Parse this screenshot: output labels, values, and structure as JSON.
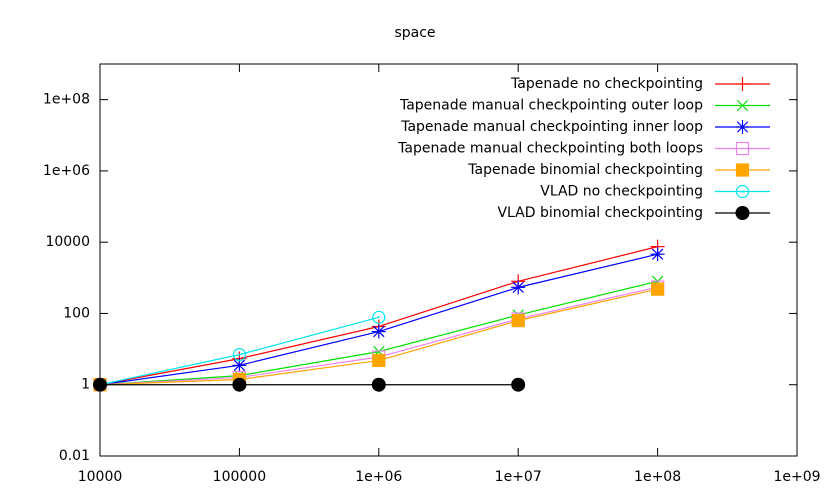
{
  "chart_data": {
    "type": "line",
    "title": "space",
    "x": [
      10000,
      100000,
      1000000,
      10000000,
      100000000
    ],
    "series": [
      {
        "name": "Tapenade no checkpointing",
        "color": "#ff0000",
        "marker": "plus",
        "values": [
          1,
          5.4,
          43,
          800,
          7500
        ]
      },
      {
        "name": "Tapenade manual checkpointing outer loop",
        "color": "#00e000",
        "marker": "cross",
        "values": [
          1,
          1.8,
          8.5,
          90,
          800
        ]
      },
      {
        "name": "Tapenade manual checkpointing inner loop",
        "color": "#0000ff",
        "marker": "star",
        "values": [
          1,
          3.5,
          31,
          540,
          4600
        ]
      },
      {
        "name": "Tapenade manual checkpointing both loops",
        "color": "#ee82ee",
        "marker": "square",
        "values": [
          1,
          1.6,
          6,
          70,
          550
        ]
      },
      {
        "name": "Tapenade binomial checkpointing",
        "color": "#ffa500",
        "marker": "filled-square",
        "values": [
          1,
          1.4,
          4.8,
          63,
          480
        ]
      },
      {
        "name": "VLAD no checkpointing",
        "color": "#00e5ee",
        "marker": "circle",
        "values": [
          1,
          7,
          78,
          null,
          null
        ]
      },
      {
        "name": "VLAD binomial checkpointing",
        "color": "#000000",
        "marker": "filled-circle",
        "values": [
          1,
          1,
          1,
          1,
          null
        ]
      }
    ],
    "xlim": [
      10000,
      1000000000
    ],
    "ylim": [
      0.01,
      1000000000
    ],
    "xticks": [
      10000,
      100000,
      {
        "value": 1000000,
        "label": "1e+06"
      },
      {
        "value": 10000000,
        "label": "1e+07"
      },
      {
        "value": 100000000,
        "label": "1e+08"
      },
      {
        "value": 1000000000,
        "label": "1e+09"
      }
    ],
    "yticks": [
      0.01,
      1,
      100,
      10000,
      {
        "value": 1000000,
        "label": "1e+06"
      },
      {
        "value": 100000000,
        "label": "1e+08"
      }
    ],
    "log_x": true,
    "log_y": true,
    "legend": "top-right"
  }
}
